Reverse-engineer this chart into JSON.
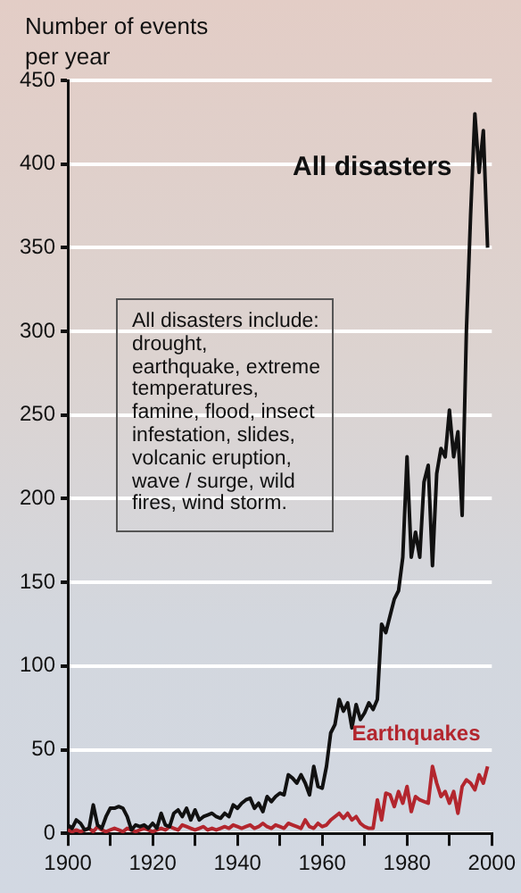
{
  "chart_data": {
    "type": "line",
    "ylabel": "Number of events per year",
    "annotations": [
      "All disasters include: drought, earthquake, extreme temperatures, famine, flood, insect infestation, slides, volcanic eruption, wave / surge, wild fires, wind storm."
    ],
    "x": [
      1900,
      1901,
      1902,
      1903,
      1904,
      1905,
      1906,
      1907,
      1908,
      1909,
      1910,
      1911,
      1912,
      1913,
      1914,
      1915,
      1916,
      1917,
      1918,
      1919,
      1920,
      1921,
      1922,
      1923,
      1924,
      1925,
      1926,
      1927,
      1928,
      1929,
      1930,
      1931,
      1932,
      1933,
      1934,
      1935,
      1936,
      1937,
      1938,
      1939,
      1940,
      1941,
      1942,
      1943,
      1944,
      1945,
      1946,
      1947,
      1948,
      1949,
      1950,
      1951,
      1952,
      1953,
      1954,
      1955,
      1956,
      1957,
      1958,
      1959,
      1960,
      1961,
      1962,
      1963,
      1964,
      1965,
      1966,
      1967,
      1968,
      1969,
      1970,
      1971,
      1972,
      1973,
      1974,
      1975,
      1976,
      1977,
      1978,
      1979,
      1980,
      1981,
      1982,
      1983,
      1984,
      1985,
      1986,
      1987,
      1988,
      1989,
      1990,
      1991,
      1992,
      1993,
      1994,
      1995,
      1996,
      1997,
      1998,
      1999
    ],
    "series": [
      {
        "name": "All disasters",
        "color": "#111111",
        "values": [
          5,
          3,
          8,
          6,
          2,
          3,
          17,
          5,
          3,
          10,
          15,
          15,
          16,
          15,
          10,
          2,
          5,
          4,
          5,
          3,
          6,
          3,
          12,
          5,
          4,
          12,
          14,
          10,
          15,
          8,
          14,
          8,
          10,
          11,
          12,
          10,
          9,
          12,
          10,
          17,
          15,
          18,
          20,
          21,
          15,
          18,
          13,
          22,
          19,
          22,
          24,
          23,
          35,
          33,
          30,
          35,
          30,
          23,
          40,
          28,
          27,
          40,
          60,
          65,
          80,
          73,
          78,
          63,
          77,
          68,
          72,
          78,
          74,
          80,
          125,
          120,
          130,
          140,
          145,
          165,
          225,
          165,
          180,
          165,
          210,
          220,
          160,
          215,
          230,
          225,
          253,
          225,
          240,
          190,
          300,
          370,
          430,
          395,
          420,
          350
        ]
      },
      {
        "name": "Earthquakes",
        "color": "#b3262e",
        "values": [
          2,
          1,
          2,
          1,
          2,
          3,
          1,
          4,
          2,
          1,
          2,
          3,
          2,
          1,
          3,
          2,
          1,
          2,
          3,
          2,
          1,
          2,
          3,
          2,
          4,
          3,
          2,
          5,
          4,
          3,
          2,
          3,
          4,
          2,
          3,
          2,
          3,
          4,
          3,
          5,
          4,
          3,
          4,
          5,
          3,
          4,
          6,
          4,
          3,
          5,
          4,
          3,
          6,
          5,
          4,
          3,
          8,
          4,
          3,
          6,
          4,
          5,
          8,
          10,
          12,
          9,
          12,
          8,
          10,
          6,
          4,
          3,
          3,
          20,
          8,
          24,
          23,
          16,
          25,
          18,
          28,
          13,
          22,
          20,
          19,
          18,
          40,
          30,
          22,
          25,
          18,
          25,
          12,
          28,
          32,
          30,
          26,
          35,
          30,
          40
        ]
      }
    ],
    "xlim": [
      1900,
      2000
    ],
    "xticks": [
      1900,
      {
        "value": 1910,
        "label": null
      },
      1920,
      {
        "value": 1930,
        "label": null
      },
      1940,
      {
        "value": 1950,
        "label": null
      },
      1960,
      {
        "value": 1970,
        "label": null
      },
      1980,
      {
        "value": 1990,
        "label": null
      },
      2000
    ],
    "ylim": [
      0,
      450
    ],
    "yticks": [
      0,
      50,
      100,
      150,
      200,
      250,
      300,
      350,
      400,
      450
    ],
    "grid": "y",
    "legend": false,
    "marker": "none",
    "line_style": "solid"
  }
}
